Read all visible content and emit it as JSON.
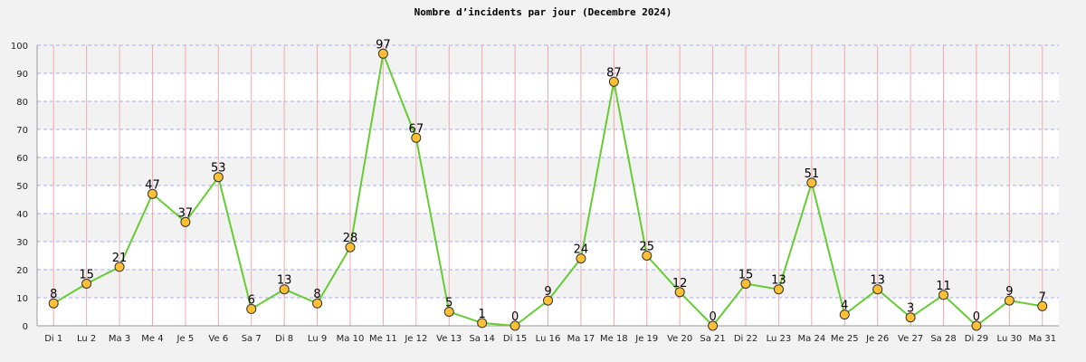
{
  "chart_data": {
    "type": "line",
    "title": "Nombre d’incidents par jour (Decembre 2024)",
    "xlabel": "",
    "ylabel": "",
    "ylim": [
      0,
      100
    ],
    "yticks": [
      0,
      10,
      20,
      30,
      40,
      50,
      60,
      70,
      80,
      90,
      100
    ],
    "grid": true,
    "categories": [
      "Di 1",
      "Lu 2",
      "Ma 3",
      "Me 4",
      "Je 5",
      "Ve 6",
      "Sa 7",
      "Di 8",
      "Lu 9",
      "Ma 10",
      "Me 11",
      "Je 12",
      "Ve 13",
      "Sa 14",
      "Di 15",
      "Lu 16",
      "Ma 17",
      "Me 18",
      "Je 19",
      "Ve 20",
      "Sa 21",
      "Di 22",
      "Lu 23",
      "Ma 24",
      "Me 25",
      "Je 26",
      "Ve 27",
      "Sa 28",
      "Di 29",
      "Lu 30",
      "Ma 31"
    ],
    "series": [
      {
        "values": [
          8,
          15,
          21,
          47,
          37,
          53,
          6,
          13,
          8,
          28,
          97,
          67,
          5,
          1,
          0,
          9,
          24,
          87,
          25,
          12,
          0,
          15,
          13,
          51,
          4,
          13,
          3,
          11,
          0,
          9,
          7
        ],
        "line_color": "#66cc33",
        "marker_color": "#ffc133"
      }
    ],
    "colors": {
      "background": "#f2f2f2",
      "band_light": "#ffffff",
      "band_dark": "#f2f2f2",
      "hgrid": "#aaaaee",
      "vgrid": "#f0aaaa",
      "axis": "#999999"
    }
  }
}
